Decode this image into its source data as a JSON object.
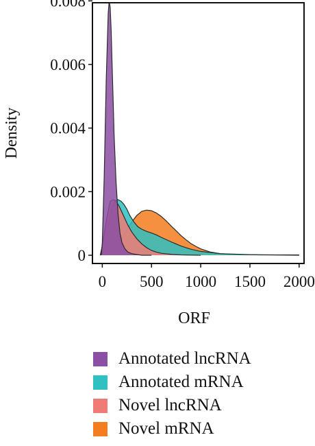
{
  "chart_data": {
    "type": "area",
    "subtype": "density",
    "xlabel": "ORF",
    "ylabel": "Density",
    "xlim": [
      -100,
      2050
    ],
    "ylim": [
      0,
      0.0082
    ],
    "x_ticks": [
      0,
      500,
      1000,
      1500,
      2000
    ],
    "x_tick_labels": [
      "0",
      "500",
      "1000",
      "1500",
      "2000"
    ],
    "y_ticks": [
      0,
      0.002,
      0.004,
      0.006,
      0.008
    ],
    "y_tick_labels": [
      "0",
      "0.002",
      "0.004",
      "0.006",
      "0.008"
    ],
    "grid": false,
    "legend_position": "bottom",
    "series": [
      {
        "name": "Novel mRNA",
        "color": "#F47D20",
        "x": [
          -20,
          0,
          50,
          100,
          150,
          200,
          250,
          300,
          350,
          400,
          450,
          500,
          550,
          600,
          650,
          700,
          750,
          800,
          850,
          900,
          950,
          1000,
          1100,
          1200,
          1300,
          1400,
          1500,
          1600,
          1700,
          1800,
          1900,
          2000
        ],
        "y": [
          0.0,
          0.0001,
          0.00018,
          0.00025,
          0.00035,
          0.00055,
          0.0008,
          0.00105,
          0.00125,
          0.00138,
          0.00142,
          0.0014,
          0.00133,
          0.00122,
          0.00108,
          0.00092,
          0.00077,
          0.00062,
          0.00049,
          0.00037,
          0.00028,
          0.0002,
          0.0001,
          5e-05,
          3e-05,
          2e-05,
          2e-05,
          1e-05,
          1e-05,
          1e-05,
          1e-05,
          1e-05
        ]
      },
      {
        "name": "Annotated mRNA",
        "color": "#2FC0C1",
        "x": [
          -20,
          0,
          20,
          50,
          80,
          100,
          130,
          160,
          190,
          220,
          250,
          280,
          320,
          360,
          400,
          450,
          500,
          550,
          600,
          700,
          800,
          900,
          1000,
          1200,
          1500,
          2000
        ],
        "y": [
          0.0,
          0.0003,
          0.0006,
          0.0009,
          0.00125,
          0.0015,
          0.0017,
          0.00175,
          0.0017,
          0.0016,
          0.00145,
          0.00125,
          0.00105,
          0.0009,
          0.00082,
          0.00075,
          0.0007,
          0.00064,
          0.00056,
          0.00042,
          0.00029,
          0.00019,
          0.00012,
          5e-05,
          2e-05,
          0.0
        ]
      },
      {
        "name": "Novel lncRNA",
        "color": "#F07B76",
        "x": [
          -20,
          0,
          20,
          50,
          80,
          110,
          140,
          170,
          200,
          230,
          260,
          300,
          350,
          400,
          450,
          500,
          550,
          600,
          700,
          800,
          1000
        ],
        "y": [
          0.0,
          0.0003,
          0.0007,
          0.00125,
          0.0017,
          0.00175,
          0.0017,
          0.00155,
          0.00135,
          0.00115,
          0.00095,
          0.00073,
          0.00052,
          0.00036,
          0.00024,
          0.00015,
          0.0001,
          6e-05,
          3e-05,
          1e-05,
          0.0
        ]
      },
      {
        "name": "Annotated lncRNA",
        "color": "#8B4FA3",
        "x": [
          -10,
          0,
          20,
          40,
          60,
          70,
          80,
          90,
          100,
          110,
          120,
          140,
          160,
          180,
          200,
          230,
          260,
          300,
          400,
          500
        ],
        "y": [
          0.0,
          0.0004,
          0.0025,
          0.0055,
          0.0076,
          0.008,
          0.0078,
          0.0071,
          0.006,
          0.0049,
          0.0038,
          0.0023,
          0.0013,
          0.0007,
          0.0004,
          0.0002,
          0.0001,
          5e-05,
          0.0,
          0.0
        ]
      }
    ]
  }
}
